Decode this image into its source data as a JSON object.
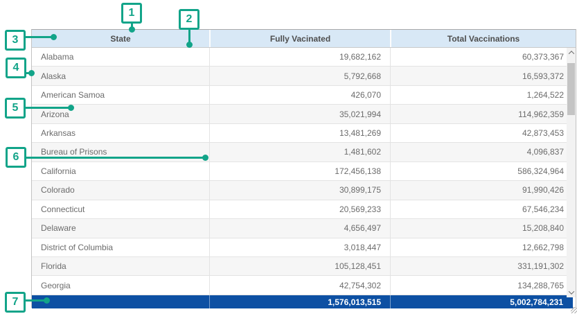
{
  "colors": {
    "accent": "#12A489",
    "header_bg": "#D8E8F6",
    "summary_bg": "#0D50A3",
    "row_alt_bg": "#F6F6F6",
    "text_body": "#6B6B6B",
    "text_header": "#4D4D4D"
  },
  "callouts": {
    "labels": [
      "1",
      "2",
      "3",
      "4",
      "5",
      "6",
      "7"
    ]
  },
  "table": {
    "columns": [
      {
        "label": "State"
      },
      {
        "label": "Fully Vacinated"
      },
      {
        "label": "Total Vaccinations"
      }
    ],
    "rows": [
      {
        "state": "Alabama",
        "fully_vaccinated": "19,682,162",
        "total_vaccinations": "60,373,367"
      },
      {
        "state": "Alaska",
        "fully_vaccinated": "5,792,668",
        "total_vaccinations": "16,593,372"
      },
      {
        "state": "American Samoa",
        "fully_vaccinated": "426,070",
        "total_vaccinations": "1,264,522"
      },
      {
        "state": "Arizona",
        "fully_vaccinated": "35,021,994",
        "total_vaccinations": "114,962,359"
      },
      {
        "state": "Arkansas",
        "fully_vaccinated": "13,481,269",
        "total_vaccinations": "42,873,453"
      },
      {
        "state": "Bureau of Prisons",
        "fully_vaccinated": "1,481,602",
        "total_vaccinations": "4,096,837"
      },
      {
        "state": "California",
        "fully_vaccinated": "172,456,138",
        "total_vaccinations": "586,324,964"
      },
      {
        "state": "Colorado",
        "fully_vaccinated": "30,899,175",
        "total_vaccinations": "91,990,426"
      },
      {
        "state": "Connecticut",
        "fully_vaccinated": "20,569,233",
        "total_vaccinations": "67,546,234"
      },
      {
        "state": "Delaware",
        "fully_vaccinated": "4,656,497",
        "total_vaccinations": "15,208,840"
      },
      {
        "state": "District of Columbia",
        "fully_vaccinated": "3,018,447",
        "total_vaccinations": "12,662,798"
      },
      {
        "state": "Florida",
        "fully_vaccinated": "105,128,451",
        "total_vaccinations": "331,191,302"
      },
      {
        "state": "Georgia",
        "fully_vaccinated": "42,754,302",
        "total_vaccinations": "134,288,765"
      }
    ],
    "summary_row": {
      "state": "",
      "fully_vaccinated": "1,576,013,515",
      "total_vaccinations": "5,002,784,231"
    }
  },
  "icons": {
    "scroll_up": "chevron-up",
    "scroll_down": "chevron-down",
    "corner": "resize-grip"
  }
}
